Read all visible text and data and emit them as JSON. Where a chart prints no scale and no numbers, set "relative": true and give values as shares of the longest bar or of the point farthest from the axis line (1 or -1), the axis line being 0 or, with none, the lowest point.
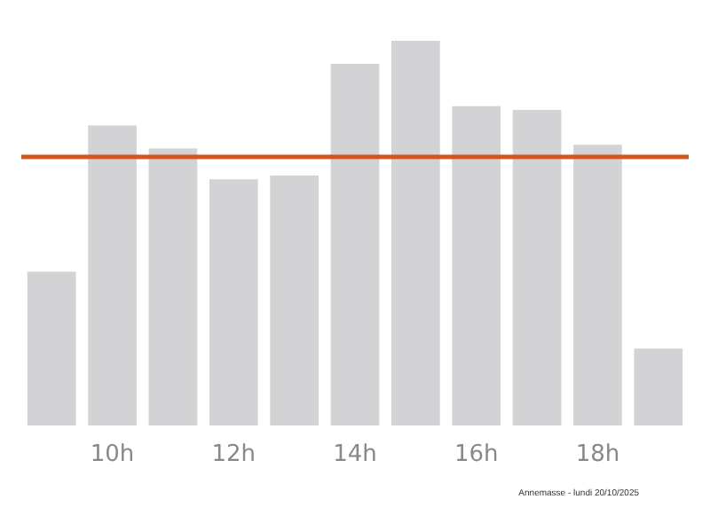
{
  "chart_data": {
    "type": "bar",
    "relative": true,
    "categories": [
      null,
      "10h",
      null,
      "12h",
      null,
      "14h",
      null,
      "16h",
      null,
      "18h",
      null
    ],
    "values": [
      0.4,
      0.78,
      0.72,
      0.64,
      0.65,
      0.94,
      1,
      0.83,
      0.82,
      0.73,
      0.2
    ],
    "color": "#d3d3d5",
    "ref_lines": [
      {
        "axis": "y",
        "value": 0.7,
        "color": "#d2571c",
        "line_style": "solid"
      }
    ],
    "annotations": [
      "Annemasse - lundi 20/10/2025"
    ],
    "grid": false
  }
}
